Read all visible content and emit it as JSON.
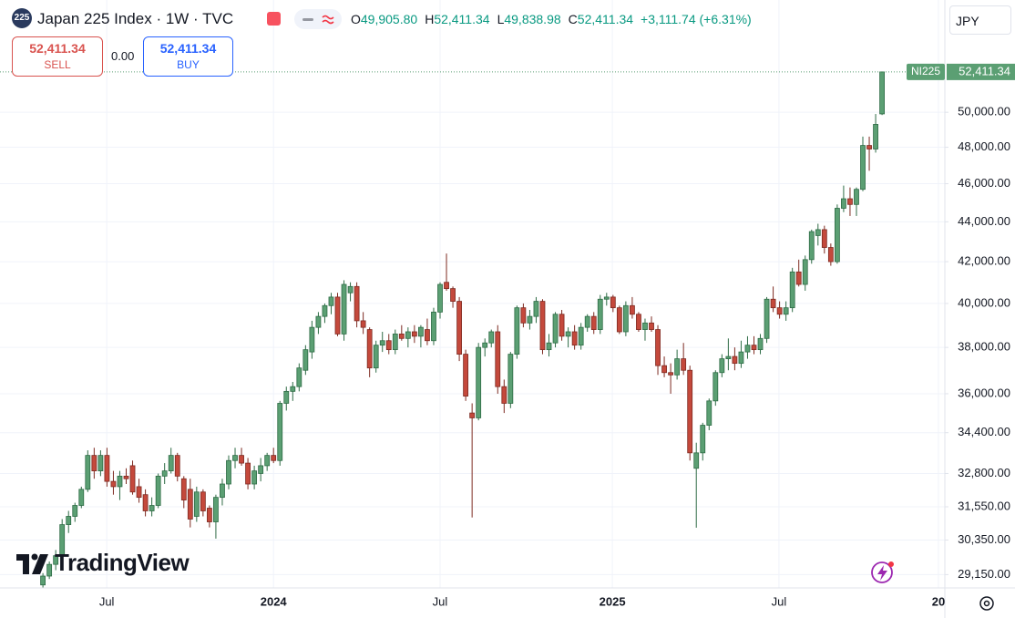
{
  "header": {
    "badge": "225",
    "title": "Japan 225 Index · 1W · TVC",
    "ohlc": [
      {
        "label": "O",
        "value": "49,905.80"
      },
      {
        "label": "H",
        "value": "52,411.34"
      },
      {
        "label": "L",
        "value": "49,838.98"
      },
      {
        "label": "C",
        "value": "52,411.34"
      }
    ],
    "change": "+3,111.74 (+6.31%)"
  },
  "trade": {
    "sell_price": "52,411.34",
    "sell_label": "SELL",
    "spread": "0.00",
    "buy_price": "52,411.34",
    "buy_label": "BUY"
  },
  "currency": "JPY",
  "logo": "TradingView",
  "chart_data": {
    "type": "candlestick",
    "symbol": "NI225",
    "last_price_label": "52,411.34",
    "up_color": "#5b9f73",
    "up_border": "#2e6b45",
    "down_color": "#c4493c",
    "down_border": "#7d2a21",
    "log_scale": true,
    "grid": true,
    "xlim": [
      -6.7,
      140.8
    ],
    "xticks": [
      {
        "value": 9.96,
        "label": "Jul"
      },
      {
        "value": 36.0,
        "label": "2024"
      },
      {
        "value": 62.0,
        "label": "Jul"
      },
      {
        "value": 88.9,
        "label": "2025"
      },
      {
        "value": 114.9,
        "label": "Jul"
      },
      {
        "value": 139.8,
        "label": "20"
      }
    ],
    "ylim": [
      28700,
      57000
    ],
    "yticks": [
      {
        "value": 29150,
        "label": "29,150.00"
      },
      {
        "value": 30350,
        "label": "30,350.00"
      },
      {
        "value": 31550,
        "label": "31,550.00"
      },
      {
        "value": 32800,
        "label": "32,800.00"
      },
      {
        "value": 34400,
        "label": "34,400.00"
      },
      {
        "value": 36000,
        "label": "36,000.00"
      },
      {
        "value": 38000,
        "label": "38,000.00"
      },
      {
        "value": 40000,
        "label": "40,000.00"
      },
      {
        "value": 42000,
        "label": "42,000.00"
      },
      {
        "value": 44000,
        "label": "44,000.00"
      },
      {
        "value": 46000,
        "label": "46,000.00"
      },
      {
        "value": 48000,
        "label": "48,000.00"
      },
      {
        "value": 50000,
        "label": "50,000.00"
      }
    ],
    "open": [
      28800,
      29100,
      29500,
      29800,
      30900,
      31200,
      31600,
      32200,
      33500,
      32900,
      33500,
      32500,
      32300,
      32700,
      33100,
      32300,
      32000,
      31400,
      31600,
      32700,
      32900,
      33500,
      32600,
      32200,
      31200,
      32100,
      31500,
      31000,
      31900,
      32400,
      33300,
      33500,
      33200,
      32400,
      32800,
      33100,
      33500,
      33300,
      35600,
      36100,
      36300,
      37000,
      37800,
      38900,
      39400,
      39900,
      40300,
      38600,
      40500,
      40800,
      39200,
      38800,
      37100,
      38100,
      38300,
      37900,
      38600,
      38400,
      38700,
      38500,
      38800,
      38300,
      39600,
      41000,
      40700,
      40100,
      37700,
      35200,
      35000,
      38000,
      38200,
      38700,
      36300,
      35600,
      37700,
      39800,
      39100,
      39400,
      40100,
      37900,
      38200,
      39500,
      38500,
      38700,
      38100,
      38900,
      39400,
      38800,
      40200,
      40300,
      39800,
      38700,
      39900,
      39500,
      38800,
      39100,
      38800,
      37200,
      36900,
      36800,
      37500,
      37000,
      33000,
      33600,
      34700,
      35700,
      36900,
      37500,
      37600,
      37300,
      37800,
      38100,
      37900,
      38400,
      40200,
      39800,
      39500,
      39800,
      41500,
      40900,
      42100,
      43300,
      43600,
      42700,
      42000,
      44700,
      45200,
      44900,
      45700,
      48100,
      47900,
      49905.8
    ],
    "high": [
      29200,
      29600,
      30000,
      31100,
      31400,
      31700,
      32300,
      33700,
      33800,
      33700,
      33800,
      32900,
      32900,
      33000,
      33300,
      32600,
      32200,
      31900,
      32800,
      33200,
      33800,
      33600,
      32700,
      32600,
      32300,
      32200,
      31600,
      32000,
      32600,
      33500,
      33800,
      33800,
      33400,
      33100,
      33400,
      33600,
      33800,
      35700,
      36300,
      36500,
      37300,
      38100,
      39200,
      39600,
      40000,
      40500,
      40500,
      41100,
      41000,
      41000,
      39600,
      38900,
      38300,
      38700,
      38600,
      38800,
      39000,
      38900,
      39000,
      39000,
      39300,
      39800,
      41000,
      42400,
      40800,
      40300,
      37900,
      35600,
      38200,
      38400,
      38800,
      39000,
      36600,
      37800,
      39900,
      40000,
      39700,
      40300,
      40200,
      38600,
      39600,
      39700,
      38900,
      39000,
      39100,
      39500,
      39600,
      40400,
      40500,
      40400,
      39900,
      40100,
      40300,
      39600,
      39300,
      39400,
      39000,
      37600,
      37300,
      37900,
      38200,
      37200,
      34000,
      34800,
      35800,
      37000,
      37700,
      38400,
      38000,
      38300,
      38500,
      38500,
      38600,
      40300,
      40800,
      40100,
      40100,
      41700,
      42100,
      42300,
      43600,
      43900,
      43800,
      42900,
      44900,
      45900,
      45800,
      45800,
      48600,
      48600,
      49900,
      52411.34
    ],
    "low": [
      28700,
      29000,
      29300,
      29700,
      30600,
      31000,
      31500,
      32100,
      32600,
      32700,
      32300,
      32000,
      31800,
      32400,
      32000,
      31700,
      31200,
      31200,
      31500,
      32400,
      32800,
      32500,
      31500,
      30800,
      31000,
      31200,
      30800,
      30400,
      31600,
      32200,
      33000,
      33100,
      32200,
      32200,
      32500,
      32900,
      33200,
      33100,
      35300,
      35700,
      36100,
      36800,
      37500,
      38600,
      39100,
      39500,
      38500,
      38300,
      40100,
      38900,
      38600,
      36700,
      36900,
      37800,
      37700,
      37700,
      38300,
      38000,
      38200,
      38000,
      38100,
      38100,
      39300,
      40600,
      39800,
      37400,
      35700,
      31160,
      34900,
      37600,
      38000,
      36000,
      35200,
      35400,
      37500,
      38900,
      38800,
      39100,
      37700,
      37600,
      38000,
      38300,
      38000,
      37900,
      37900,
      38700,
      38600,
      38600,
      39900,
      39600,
      38600,
      38500,
      39300,
      38700,
      38300,
      38700,
      36800,
      36700,
      36000,
      36600,
      36800,
      33300,
      30790,
      33300,
      34500,
      35500,
      36700,
      37000,
      37000,
      37100,
      37500,
      37700,
      37700,
      38200,
      39600,
      39300,
      39200,
      39600,
      40800,
      40600,
      41900,
      42800,
      42400,
      41800,
      41900,
      44500,
      44300,
      44300,
      45600,
      46700,
      47700,
      49838.98
    ],
    "close": [
      29100,
      29500,
      29800,
      30900,
      31200,
      31600,
      32200,
      33500,
      32900,
      33500,
      32500,
      32300,
      32700,
      32600,
      32100,
      31900,
      31400,
      31600,
      32700,
      32900,
      33500,
      32700,
      31800,
      31100,
      32100,
      31400,
      31000,
      31900,
      32400,
      33300,
      33500,
      33200,
      32400,
      32900,
      33100,
      33500,
      33300,
      35600,
      36100,
      36300,
      37100,
      37900,
      38900,
      39400,
      39900,
      40300,
      38600,
      40900,
      40800,
      39200,
      38900,
      37100,
      38100,
      38300,
      37900,
      38600,
      38400,
      38700,
      38500,
      38900,
      38300,
      39600,
      40900,
      40700,
      40100,
      37700,
      35900,
      35000,
      38000,
      38200,
      38700,
      36300,
      35600,
      37700,
      39800,
      39100,
      39400,
      40100,
      37900,
      38200,
      39500,
      38500,
      38700,
      38100,
      38900,
      39400,
      38800,
      40200,
      40300,
      39800,
      38700,
      39900,
      39500,
      38800,
      39100,
      38800,
      37200,
      36900,
      36800,
      37500,
      37000,
      33600,
      33600,
      34700,
      35700,
      36900,
      37500,
      37600,
      37300,
      37800,
      38100,
      37900,
      38400,
      40200,
      39800,
      39500,
      39800,
      41500,
      40900,
      42100,
      43500,
      43600,
      42700,
      42000,
      44700,
      45200,
      44900,
      45700,
      48100,
      47900,
      49300,
      52411.34
    ]
  }
}
